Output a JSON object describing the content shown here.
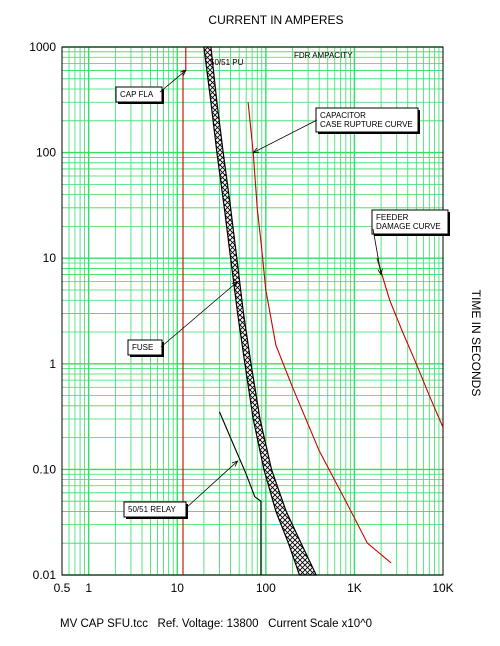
{
  "chart_data": {
    "type": "line",
    "title": "CURRENT IN AMPERES",
    "ylabel": "TIME IN SECONDS",
    "x_scale": "log",
    "y_scale": "log",
    "xlim": [
      0.5,
      10000
    ],
    "ylim": [
      0.01,
      1000
    ],
    "grid": true,
    "x_ticks": [
      {
        "value": 0.5,
        "label": "0.5"
      },
      {
        "value": 1,
        "label": "1"
      },
      {
        "value": 10,
        "label": "10"
      },
      {
        "value": 100,
        "label": "100"
      },
      {
        "value": 1000,
        "label": "1K"
      },
      {
        "value": 10000,
        "label": "10K"
      }
    ],
    "y_ticks": [
      {
        "value": 1000,
        "label": "1000"
      },
      {
        "value": 100,
        "label": "100"
      },
      {
        "value": 10,
        "label": "10"
      },
      {
        "value": 1,
        "label": "1"
      },
      {
        "value": 0.1,
        "label": "0.10"
      },
      {
        "value": 0.01,
        "label": "0.01"
      }
    ],
    "series": [
      {
        "name": "CAP FLA",
        "color": "#cc0000",
        "style": "solid",
        "points": [
          [
            12.5,
            1000
          ],
          [
            12.5,
            630
          ],
          [
            12.5,
            600
          ],
          [
            11.6,
            600
          ],
          [
            11.6,
            0
          ]
        ]
      },
      {
        "name": "FDR AMPACITY",
        "color": "#cc0000",
        "style": "dashed-text",
        "points": []
      },
      {
        "name": "CAPACITOR CASE RUPTURE CURVE",
        "color": "#cc0000",
        "style": "solid",
        "points": [
          [
            63,
            300
          ],
          [
            72,
            100
          ],
          [
            80,
            30
          ],
          [
            90,
            12
          ],
          [
            100,
            5
          ],
          [
            130,
            1.5
          ],
          [
            200,
            0.6
          ],
          [
            400,
            0.15
          ],
          [
            800,
            0.05
          ],
          [
            1400,
            0.02
          ],
          [
            2600,
            0.013
          ]
        ]
      },
      {
        "name": "FEEDER DAMAGE CURVE",
        "color": "#cc0000",
        "style": "solid",
        "points": [
          [
            1800,
            10
          ],
          [
            2500,
            4
          ],
          [
            3500,
            2
          ],
          [
            5000,
            1
          ],
          [
            7000,
            0.5
          ],
          [
            10000,
            0.25
          ]
        ]
      },
      {
        "name": "50/51 RELAY",
        "color": "#000000",
        "style": "solid",
        "points": [
          [
            30,
            0.35
          ],
          [
            42,
            0.18
          ],
          [
            60,
            0.09
          ],
          [
            75,
            0.055
          ],
          [
            88,
            0.05
          ],
          [
            88,
            0.01
          ]
        ]
      },
      {
        "name": "FUSE",
        "color": "#000000",
        "style": "crosshatch-band",
        "min_melt": [
          [
            20,
            1000
          ],
          [
            24,
            300
          ],
          [
            28,
            100
          ],
          [
            34,
            30
          ],
          [
            40,
            10
          ],
          [
            48,
            3
          ],
          [
            58,
            1
          ],
          [
            72,
            0.3
          ],
          [
            95,
            0.1
          ],
          [
            130,
            0.04
          ],
          [
            180,
            0.02
          ],
          [
            240,
            0.01
          ]
        ],
        "total_clear": [
          [
            24,
            1000
          ],
          [
            28,
            300
          ],
          [
            33,
            100
          ],
          [
            40,
            30
          ],
          [
            47,
            10
          ],
          [
            56,
            3
          ],
          [
            68,
            1
          ],
          [
            86,
            0.3
          ],
          [
            116,
            0.1
          ],
          [
            170,
            0.04
          ],
          [
            250,
            0.02
          ],
          [
            370,
            0.01
          ]
        ]
      }
    ],
    "annotations": [
      {
        "text": "CAP FLA",
        "points_to": [
          12.5,
          600
        ]
      },
      {
        "text": "50/51 PU",
        "points_to": null
      },
      {
        "text": "FDR AMPACITY",
        "points_to": null
      },
      {
        "text": "CAPACITOR\nCASE RUPTURE CURVE",
        "points_to": [
          72,
          100
        ]
      },
      {
        "text": "FEEDER\nDAMAGE CURVE",
        "points_to": [
          2000,
          7
        ]
      },
      {
        "text": "FUSE",
        "points_to": [
          48,
          6
        ]
      },
      {
        "text": "50/51 RELAY",
        "points_to": [
          48,
          0.12
        ]
      }
    ]
  },
  "footer": "MV CAP SFU.tcc   Ref. Voltage: 13800   Current Scale x10^0"
}
